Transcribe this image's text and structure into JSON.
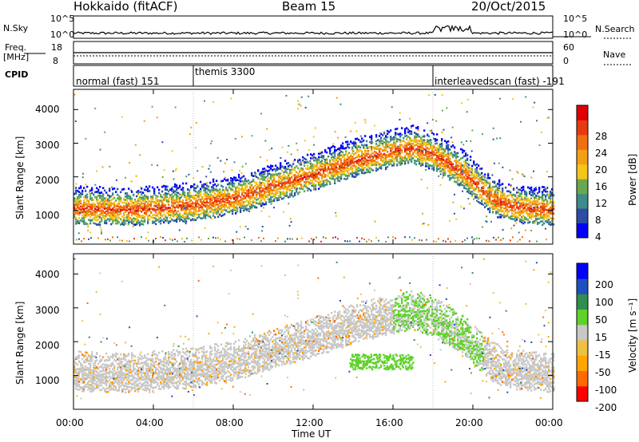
{
  "header": {
    "station": "Hokkaido (fitACF)",
    "beam": "Beam 15",
    "date": "20/Oct/2015"
  },
  "top_panels": {
    "nsky_label": "N.Sky",
    "nsky_ticks": [
      "10^5",
      "10^0"
    ],
    "nsearch_label": "N.Search",
    "nsearch_ticks": [
      "10^5",
      "10^0"
    ],
    "freq_label": "Freq.",
    "freq_unit": "[MHz]",
    "freq_ticks": [
      "18",
      "8"
    ],
    "nave_label": "Nave",
    "nave_ticks": [
      "60",
      "0"
    ],
    "cpid_label": "CPID",
    "cpid_modes": [
      {
        "name": "normal (fast) 151",
        "start_hour": 0,
        "end_hour": 6
      },
      {
        "name": "themis 3300",
        "start_hour": 6,
        "end_hour": 18
      },
      {
        "name": "interleavedscan (fast) -191",
        "start_hour": 18,
        "end_hour": 24
      }
    ]
  },
  "chart_data": [
    {
      "type": "heatmap",
      "title": "",
      "ylabel": "Slant Range [km]",
      "xlabel": "",
      "ylim": [
        0,
        4600
      ],
      "yticks": [
        "1000",
        "2000",
        "3000",
        "4000"
      ],
      "colorbar_label": "Power [dB]",
      "colorbar_ticks": [
        "28",
        "24",
        "20",
        "16",
        "12",
        "8",
        "4"
      ],
      "colorscale": [
        "#0000ff",
        "#2c4ca8",
        "#3f8a8a",
        "#6aa84f",
        "#f5c518",
        "#f2a014",
        "#f06f10",
        "#e83a10",
        "#e00000"
      ],
      "main_echo_band_hour_km": [
        [
          0,
          1050
        ],
        [
          3,
          1000
        ],
        [
          6,
          1150
        ],
        [
          8,
          1350
        ],
        [
          10,
          1700
        ],
        [
          12,
          2050
        ],
        [
          14,
          2450
        ],
        [
          16,
          2750
        ],
        [
          17,
          2850
        ],
        [
          18,
          2650
        ],
        [
          19.5,
          2100
        ],
        [
          21,
          1300
        ],
        [
          22,
          1100
        ],
        [
          24,
          1000
        ]
      ]
    },
    {
      "type": "heatmap",
      "title": "",
      "ylabel": "Slant Range [km]",
      "xlabel": "Time UT",
      "ylim": [
        0,
        4600
      ],
      "yticks": [
        "1000",
        "2000",
        "3000",
        "4000"
      ],
      "xticks": [
        "00:00",
        "04:00",
        "08:00",
        "12:00",
        "16:00",
        "20:00",
        "00:00"
      ],
      "colorbar_label": "Velocity [m s⁻¹]",
      "colorbar_ticks": [
        "200",
        "100",
        "50",
        "15",
        "-15",
        "-50",
        "-100",
        "-200"
      ],
      "colorscale": [
        "#ff0000",
        "#ff6a00",
        "#ffa500",
        "#f0c040",
        "#c8c8c8",
        "#5fd22a",
        "#2f8f4f",
        "#1f4fbf",
        "#0000ff"
      ]
    }
  ]
}
